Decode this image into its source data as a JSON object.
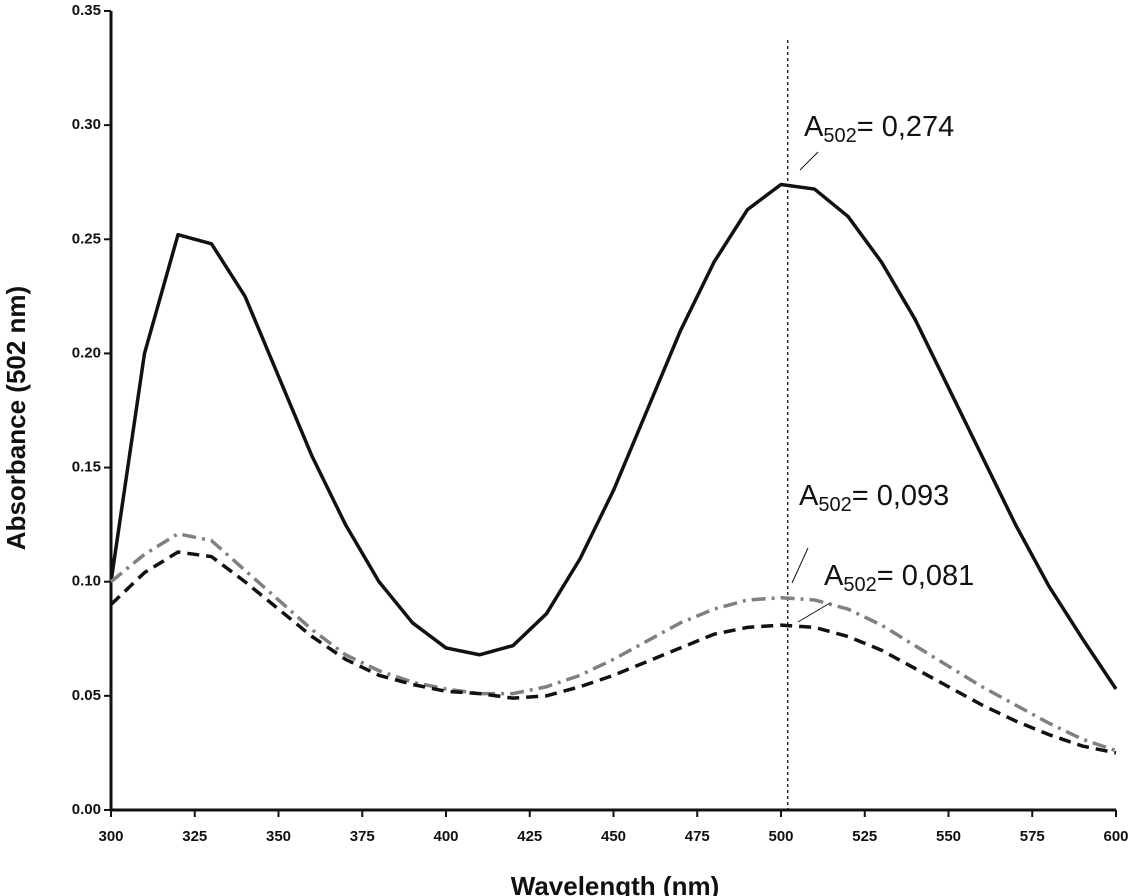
{
  "chart_data": {
    "type": "line",
    "x_label": "Wavelength (nm)",
    "y_label": "Absorbance (502 nm)",
    "x": [
      300,
      310,
      320,
      330,
      340,
      350,
      360,
      370,
      380,
      390,
      400,
      410,
      420,
      430,
      440,
      450,
      460,
      470,
      480,
      490,
      500,
      510,
      520,
      530,
      540,
      550,
      560,
      570,
      580,
      590,
      600
    ],
    "series": [
      {
        "color": "#111111",
        "style": "solid",
        "values": [
          0.1,
          0.2,
          0.252,
          0.248,
          0.225,
          0.19,
          0.155,
          0.125,
          0.1,
          0.082,
          0.071,
          0.068,
          0.072,
          0.086,
          0.11,
          0.14,
          0.175,
          0.21,
          0.24,
          0.263,
          0.274,
          0.272,
          0.26,
          0.24,
          0.215,
          0.185,
          0.155,
          0.125,
          0.098,
          0.075,
          0.053
        ]
      },
      {
        "color": "#808080",
        "style": "dashdot",
        "values": [
          0.1,
          0.112,
          0.121,
          0.118,
          0.105,
          0.092,
          0.079,
          0.068,
          0.061,
          0.056,
          0.053,
          0.051,
          0.051,
          0.054,
          0.059,
          0.066,
          0.074,
          0.082,
          0.088,
          0.092,
          0.093,
          0.092,
          0.088,
          0.081,
          0.072,
          0.063,
          0.054,
          0.046,
          0.038,
          0.031,
          0.026
        ]
      },
      {
        "color": "#111111",
        "style": "dash",
        "values": [
          0.09,
          0.104,
          0.113,
          0.111,
          0.1,
          0.088,
          0.076,
          0.066,
          0.059,
          0.055,
          0.052,
          0.051,
          0.049,
          0.05,
          0.054,
          0.059,
          0.065,
          0.071,
          0.077,
          0.08,
          0.081,
          0.08,
          0.076,
          0.07,
          0.062,
          0.054,
          0.046,
          0.039,
          0.033,
          0.028,
          0.025
        ]
      }
    ],
    "reference_x": 502,
    "annotations": [
      {
        "text": "A",
        "sub": "502",
        "rest": "= 0,274"
      },
      {
        "text": "A",
        "sub": "502",
        "rest": "= 0,093"
      },
      {
        "text": "A",
        "sub": "502",
        "rest": "= 0,081"
      }
    ],
    "xlim": [
      300,
      600
    ],
    "xticks": [
      300,
      325,
      350,
      375,
      400,
      425,
      450,
      475,
      500,
      525,
      550,
      575,
      600
    ],
    "ylim": [
      0,
      0.35
    ],
    "yticks": [
      {
        "value": 0,
        "label": "0.00"
      },
      0.05,
      {
        "value": 0.1,
        "label": "0.10"
      },
      0.15,
      {
        "value": 0.2,
        "label": "0.20"
      },
      0.25,
      {
        "value": 0.3,
        "label": "0.30"
      },
      0.35
    ]
  }
}
